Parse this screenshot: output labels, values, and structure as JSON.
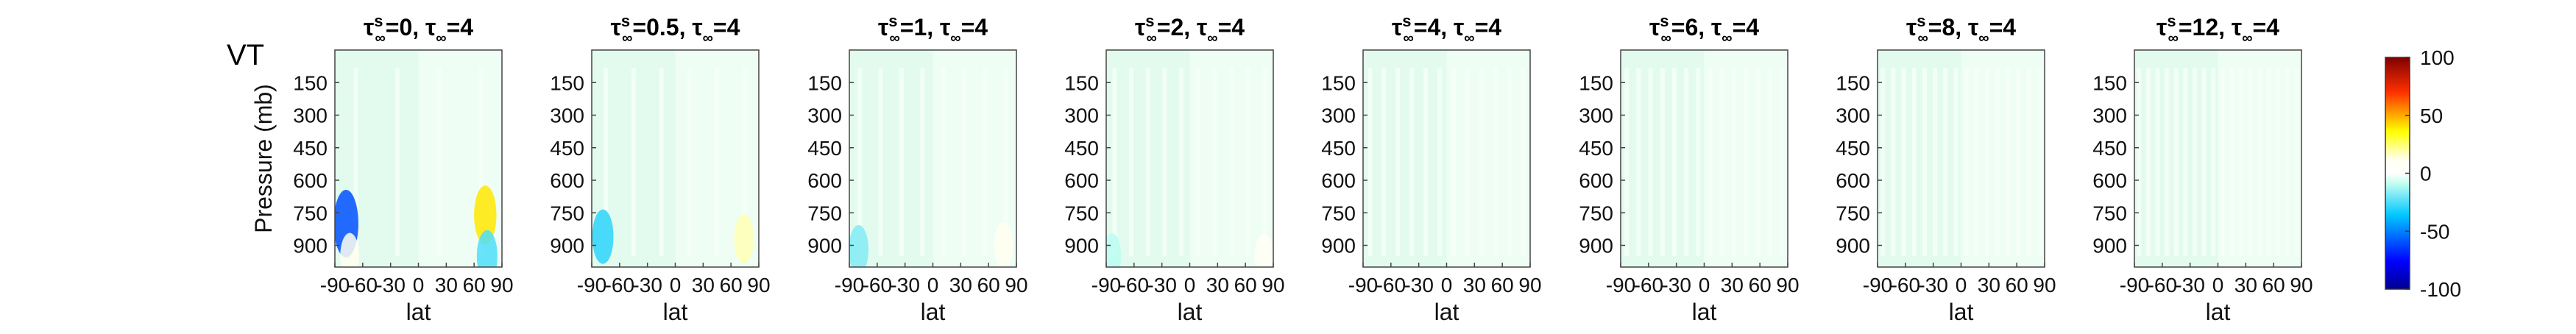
{
  "figure_label": "VT",
  "colorbar": {
    "ticks": [
      "100",
      "50",
      "0",
      "-50",
      "-100"
    ],
    "ticks_values": [
      100,
      50,
      0,
      -50,
      -100
    ],
    "range": [
      -100,
      100
    ],
    "colormap": "jet-like (blue → cyan → white → yellow → red)"
  },
  "chart_data": [
    {
      "type": "heatmap",
      "title_base": "τ",
      "title_sup": "s",
      "title_sub": "∞",
      "title_val1": "=0, ",
      "title_val2": "=4",
      "xlabel": "lat",
      "ylabel": "Pressure (mb)",
      "xticks": [
        "-90",
        "-60",
        "-30",
        "0",
        "30",
        "60",
        "90"
      ],
      "xlim": [
        -90,
        90
      ],
      "yticks": [
        "150",
        "300",
        "450",
        "600",
        "750",
        "900"
      ],
      "ylim": [
        0,
        1000
      ],
      "y_reversed": true,
      "anomalies": [
        {
          "lat": -78,
          "p": 800,
          "value": -60
        },
        {
          "lat": -74,
          "p": 950,
          "value": 12
        },
        {
          "lat": 72,
          "p": 760,
          "value": 40
        },
        {
          "lat": 74,
          "p": 950,
          "value": -25
        }
      ]
    },
    {
      "type": "heatmap",
      "title_base": "τ",
      "title_sup": "s",
      "title_sub": "∞",
      "title_val1": "=0.5, ",
      "title_val2": "=4",
      "xlabel": "lat",
      "ylabel": "",
      "xticks": [
        "-90",
        "-60",
        "-30",
        "0",
        "30",
        "60",
        "90"
      ],
      "xlim": [
        -90,
        90
      ],
      "yticks": [
        "150",
        "300",
        "450",
        "600",
        "750",
        "900"
      ],
      "ylim": [
        0,
        1000
      ],
      "y_reversed": true,
      "anomalies": [
        {
          "lat": -78,
          "p": 860,
          "value": -30
        },
        {
          "lat": 74,
          "p": 870,
          "value": 18
        }
      ]
    },
    {
      "type": "heatmap",
      "title_base": "τ",
      "title_sup": "s",
      "title_sub": "∞",
      "title_val1": "=1, ",
      "title_val2": "=4",
      "xlabel": "lat",
      "ylabel": "",
      "xticks": [
        "-90",
        "-60",
        "-30",
        "0",
        "30",
        "60",
        "90"
      ],
      "xlim": [
        -90,
        90
      ],
      "yticks": [
        "150",
        "300",
        "450",
        "600",
        "750",
        "900"
      ],
      "ylim": [
        0,
        1000
      ],
      "y_reversed": true,
      "anomalies": [
        {
          "lat": -80,
          "p": 920,
          "value": -18
        },
        {
          "lat": 76,
          "p": 900,
          "value": 12
        }
      ]
    },
    {
      "type": "heatmap",
      "title_base": "τ",
      "title_sup": "s",
      "title_sub": "∞",
      "title_val1": "=2, ",
      "title_val2": "=4",
      "xlabel": "lat",
      "ylabel": "",
      "xticks": [
        "-90",
        "-60",
        "-30",
        "0",
        "30",
        "60",
        "90"
      ],
      "xlim": [
        -90,
        90
      ],
      "yticks": [
        "150",
        "300",
        "450",
        "600",
        "750",
        "900"
      ],
      "ylim": [
        0,
        1000
      ],
      "y_reversed": true,
      "anomalies": [
        {
          "lat": -84,
          "p": 950,
          "value": -10
        },
        {
          "lat": 80,
          "p": 950,
          "value": 8
        }
      ]
    },
    {
      "type": "heatmap",
      "title_base": "τ",
      "title_sup": "s",
      "title_sub": "∞",
      "title_val1": "=4, ",
      "title_val2": "=4",
      "xlabel": "lat",
      "ylabel": "",
      "xticks": [
        "-90",
        "-60",
        "-30",
        "0",
        "30",
        "60",
        "90"
      ],
      "xlim": [
        -90,
        90
      ],
      "yticks": [
        "150",
        "300",
        "450",
        "600",
        "750",
        "900"
      ],
      "ylim": [
        0,
        1000
      ],
      "y_reversed": true,
      "anomalies": []
    },
    {
      "type": "heatmap",
      "title_base": "τ",
      "title_sup": "s",
      "title_sub": "∞",
      "title_val1": "=6, ",
      "title_val2": "=4",
      "xlabel": "lat",
      "ylabel": "",
      "xticks": [
        "-90",
        "-60",
        "-30",
        "0",
        "30",
        "60",
        "90"
      ],
      "xlim": [
        -90,
        90
      ],
      "yticks": [
        "150",
        "300",
        "450",
        "600",
        "750",
        "900"
      ],
      "ylim": [
        0,
        1000
      ],
      "y_reversed": true,
      "anomalies": []
    },
    {
      "type": "heatmap",
      "title_base": "τ",
      "title_sup": "s",
      "title_sub": "∞",
      "title_val1": "=8, ",
      "title_val2": "=4",
      "xlabel": "lat",
      "ylabel": "",
      "xticks": [
        "-90",
        "-60",
        "-30",
        "0",
        "30",
        "60",
        "90"
      ],
      "xlim": [
        -90,
        90
      ],
      "yticks": [
        "150",
        "300",
        "450",
        "600",
        "750",
        "900"
      ],
      "ylim": [
        0,
        1000
      ],
      "y_reversed": true,
      "anomalies": []
    },
    {
      "type": "heatmap",
      "title_base": "τ",
      "title_sup": "s",
      "title_sub": "∞",
      "title_val1": "=12, ",
      "title_val2": "=4",
      "xlabel": "lat",
      "ylabel": "",
      "xticks": [
        "-90",
        "-60",
        "-30",
        "0",
        "30",
        "60",
        "90"
      ],
      "xlim": [
        -90,
        90
      ],
      "yticks": [
        "150",
        "300",
        "450",
        "600",
        "750",
        "900"
      ],
      "ylim": [
        0,
        1000
      ],
      "y_reversed": true,
      "anomalies": []
    }
  ]
}
